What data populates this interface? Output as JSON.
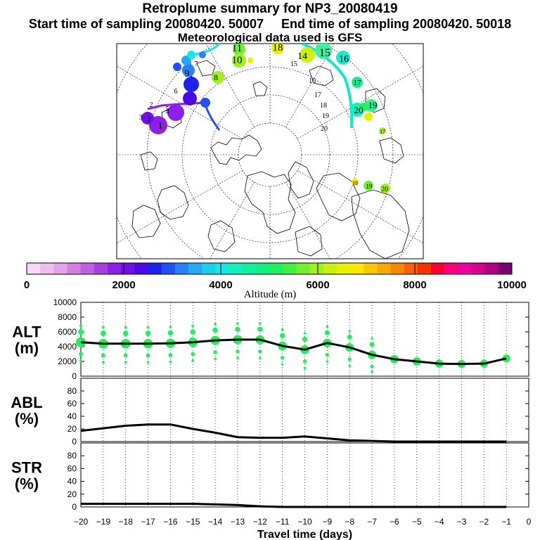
{
  "title": "Retroplume summary for NP3_20080419",
  "subtitle_start": "Start time of sampling 20080420. 50007",
  "subtitle_end": "End time of sampling 20080420. 50018",
  "met_note": "Meteorological data used is GFS",
  "colorbar": {
    "label": "Altitude (m)",
    "ticks": [
      "0",
      "2000",
      "4000",
      "6000",
      "8000",
      "10000"
    ],
    "colors": [
      "#f6d8f6",
      "#eebeee",
      "#e3a3e8",
      "#d47fe0",
      "#c15fe0",
      "#a63fe0",
      "#8c1fe8",
      "#7010e8",
      "#4a0ae8",
      "#2020f0",
      "#2050f8",
      "#2a80f8",
      "#25a8f8",
      "#1ad0f0",
      "#14e8e0",
      "#10f0c0",
      "#10f0a0",
      "#10f080",
      "#20f060",
      "#40f040",
      "#70f030",
      "#a0f020",
      "#c8f010",
      "#e8f000",
      "#f8e800",
      "#f8c800",
      "#f8a800",
      "#f88800",
      "#f86000",
      "#f83000",
      "#f80030",
      "#f8007c",
      "#f000a0",
      "#d8008c",
      "#b00080",
      "#7c0070"
    ]
  },
  "map_labels": [
    {
      "t": "11",
      "c": "#a0f020"
    },
    {
      "t": "10",
      "c": "#c8f010"
    },
    {
      "t": "18",
      "c": "#e8f000"
    },
    {
      "t": "14",
      "c": "#c8f010"
    },
    {
      "t": "15",
      "c": "#40f0a0"
    },
    {
      "t": "16",
      "c": "#20e8c8"
    },
    {
      "t": "17",
      "c": "#10f090"
    },
    {
      "t": "19",
      "c": "#30f090"
    },
    {
      "t": "20",
      "c": "#10f0c0"
    },
    {
      "t": "8",
      "c": "#1ad0f0"
    },
    {
      "t": "9",
      "c": "#a0f020"
    },
    {
      "t": "7",
      "c": "#2080f8"
    },
    {
      "t": "1",
      "c": "#7010e8"
    },
    {
      "t": "2",
      "c": "#8c1fe8"
    },
    {
      "t": "4",
      "c": "#9020e0"
    },
    {
      "t": "17",
      "c": "#a0f020"
    },
    {
      "t": "18",
      "c": "#e8f000"
    },
    {
      "t": "19",
      "c": "#a0f020"
    },
    {
      "t": "20",
      "c": "#a0f020"
    }
  ],
  "chart_data": [
    {
      "type": "line",
      "title": "ALT",
      "ylabel": "ALT\n(m)",
      "ylabel_line1": "ALT",
      "ylabel_line2": "(m)",
      "x": [
        -20,
        -19,
        -18,
        -17,
        -16,
        -15,
        -14,
        -13,
        -12,
        -11,
        -10,
        -9,
        -8,
        -7,
        -6,
        -5,
        -4,
        -3,
        -2,
        -1
      ],
      "values": [
        4600,
        4400,
        4400,
        4400,
        4450,
        4600,
        4850,
        4950,
        4950,
        4100,
        3600,
        4500,
        3900,
        2900,
        2300,
        2000,
        1700,
        1650,
        1700,
        2400
      ],
      "ylim": [
        0,
        10000
      ],
      "yticks": [
        "0",
        "2000",
        "4000",
        "6000",
        "8000",
        "10000"
      ],
      "ytick_values": [
        0,
        2000,
        4000,
        6000,
        8000,
        10000
      ],
      "color": "#20f060"
    },
    {
      "type": "line",
      "title": "ABL",
      "ylabel_line1": "ABL",
      "ylabel_line2": "(%)",
      "x": [
        -20,
        -19,
        -18,
        -17,
        -16,
        -15,
        -14,
        -13,
        -12,
        -11,
        -10,
        -9,
        -8,
        -7,
        -6,
        -5,
        -4,
        -3,
        -2,
        -1
      ],
      "values": [
        17,
        21,
        25,
        27,
        27,
        20,
        14,
        7,
        6,
        6,
        8,
        5,
        2,
        1,
        0,
        0,
        0,
        0,
        0,
        0
      ],
      "ylim": [
        0,
        100
      ],
      "yticks": [
        "0",
        "20",
        "40",
        "60",
        "80"
      ],
      "ytick_values": [
        0,
        20,
        40,
        60,
        80
      ]
    },
    {
      "type": "line",
      "title": "STR",
      "ylabel_line1": "STR",
      "ylabel_line2": "(%)",
      "x": [
        -20,
        -19,
        -18,
        -17,
        -16,
        -15,
        -14,
        -13,
        -12,
        -11,
        -10,
        -9,
        -8,
        -7,
        -6,
        -5,
        -4,
        -3,
        -2,
        -1
      ],
      "values": [
        5,
        5,
        5,
        5,
        5,
        5,
        4,
        3,
        1,
        0,
        0,
        0,
        0,
        0,
        0,
        0,
        0,
        0,
        0,
        0
      ],
      "ylim": [
        0,
        100
      ],
      "yticks": [
        "0",
        "20",
        "40",
        "60",
        "80"
      ],
      "ytick_values": [
        0,
        20,
        40,
        60,
        80
      ]
    }
  ],
  "xaxis": {
    "label": "Travel time (days)",
    "ticks": [
      "−20",
      "−19",
      "−18",
      "−17",
      "−16",
      "−15",
      "−14",
      "−13",
      "−12",
      "−11",
      "−10",
      "−9",
      "−8",
      "−7",
      "−6",
      "−5",
      "−4",
      "−3",
      "−2",
      "−1",
      "0"
    ],
    "tick_values": [
      -20,
      -19,
      -18,
      -17,
      -16,
      -15,
      -14,
      -13,
      -12,
      -11,
      -10,
      -9,
      -8,
      -7,
      -6,
      -5,
      -4,
      -3,
      -2,
      -1,
      0
    ]
  }
}
